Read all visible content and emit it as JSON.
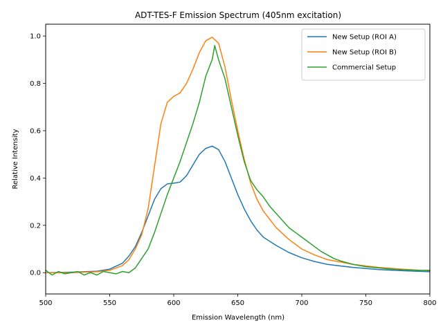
{
  "chart_data": {
    "type": "line",
    "title": "ADT-TES-F Emission Spectrum (405nm excitation)",
    "xlabel": "Emission Wavelength (nm)",
    "ylabel": "Relative Intensity",
    "xlim": [
      500,
      800
    ],
    "ylim": [
      -0.09,
      1.05
    ],
    "xticks": [
      500,
      550,
      600,
      650,
      700,
      750,
      800
    ],
    "xtick_labels": [
      "500",
      "550",
      "600",
      "650",
      "700",
      "750",
      "800"
    ],
    "yticks": [
      0.0,
      0.2,
      0.4,
      0.6,
      0.8,
      1.0
    ],
    "ytick_labels": [
      "0.0",
      "0.2",
      "0.4",
      "0.6",
      "0.8",
      "1.0"
    ],
    "grid": false,
    "legend_position": "top-right",
    "series": [
      {
        "name": "New Setup (ROI A)",
        "color": "#1f77b4",
        "x": [
          500,
          520,
          540,
          550,
          560,
          565,
          570,
          575,
          580,
          585,
          590,
          595,
          600,
          605,
          610,
          615,
          620,
          625,
          630,
          635,
          640,
          645,
          650,
          655,
          660,
          665,
          670,
          680,
          690,
          700,
          710,
          720,
          740,
          760,
          780,
          800
        ],
        "y": [
          0.0,
          0.002,
          0.006,
          0.015,
          0.04,
          0.07,
          0.11,
          0.17,
          0.24,
          0.31,
          0.355,
          0.375,
          0.378,
          0.383,
          0.41,
          0.455,
          0.5,
          0.525,
          0.535,
          0.52,
          0.47,
          0.4,
          0.33,
          0.27,
          0.22,
          0.18,
          0.15,
          0.115,
          0.085,
          0.063,
          0.047,
          0.035,
          0.022,
          0.013,
          0.008,
          0.004
        ]
      },
      {
        "name": "New Setup (ROI B)",
        "color": "#ff7f0e",
        "x": [
          500,
          520,
          540,
          550,
          560,
          565,
          570,
          575,
          580,
          585,
          590,
          595,
          600,
          605,
          610,
          615,
          620,
          625,
          630,
          635,
          640,
          645,
          650,
          655,
          660,
          665,
          670,
          680,
          690,
          700,
          710,
          720,
          740,
          760,
          780,
          800
        ],
        "y": [
          0.0,
          0.0,
          0.004,
          0.01,
          0.03,
          0.055,
          0.1,
          0.16,
          0.27,
          0.45,
          0.63,
          0.72,
          0.745,
          0.76,
          0.8,
          0.86,
          0.93,
          0.98,
          0.995,
          0.97,
          0.87,
          0.73,
          0.6,
          0.48,
          0.38,
          0.31,
          0.26,
          0.19,
          0.14,
          0.1,
          0.075,
          0.055,
          0.035,
          0.022,
          0.014,
          0.008
        ]
      },
      {
        "name": "Commercial Setup",
        "color": "#2ca02c",
        "x": [
          500,
          505,
          510,
          515,
          520,
          525,
          530,
          535,
          540,
          545,
          550,
          555,
          560,
          565,
          570,
          575,
          580,
          585,
          590,
          595,
          600,
          605,
          610,
          615,
          620,
          625,
          630,
          632,
          635,
          640,
          645,
          650,
          655,
          660,
          665,
          670,
          675,
          680,
          685,
          690,
          695,
          700,
          705,
          710,
          715,
          720,
          725,
          730,
          740,
          750,
          760,
          770,
          780,
          790,
          800
        ],
        "y": [
          0.01,
          -0.01,
          0.005,
          -0.005,
          0.0,
          0.005,
          -0.01,
          0.0,
          -0.01,
          0.005,
          0.0,
          -0.005,
          0.005,
          0.0,
          0.02,
          0.06,
          0.1,
          0.17,
          0.25,
          0.33,
          0.4,
          0.47,
          0.55,
          0.63,
          0.72,
          0.83,
          0.9,
          0.96,
          0.9,
          0.82,
          0.7,
          0.58,
          0.47,
          0.39,
          0.35,
          0.32,
          0.28,
          0.25,
          0.22,
          0.19,
          0.17,
          0.15,
          0.13,
          0.11,
          0.09,
          0.075,
          0.06,
          0.05,
          0.035,
          0.025,
          0.02,
          0.015,
          0.012,
          0.01,
          0.01
        ]
      }
    ]
  }
}
